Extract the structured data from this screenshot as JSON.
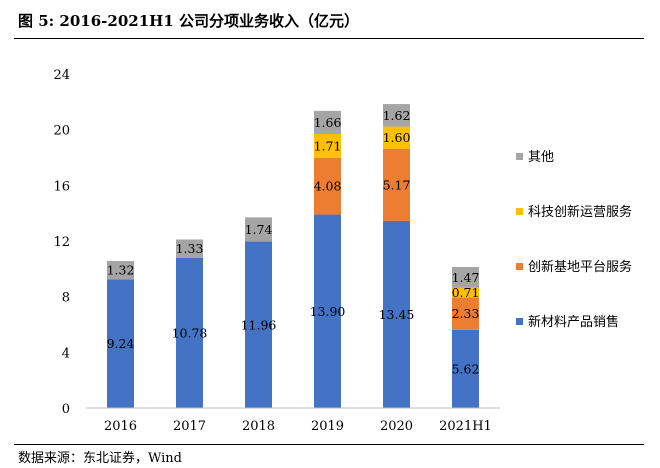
{
  "title": "图 5: 2016-2021H1 公司分项业务收入（亿元）",
  "source": "数据来源：东北证券，Wind",
  "chart_data": {
    "type": "bar",
    "stacked": true,
    "categories": [
      "2016",
      "2017",
      "2018",
      "2019",
      "2020",
      "2021H1"
    ],
    "ylim": [
      0,
      24
    ],
    "yticks": [
      0,
      4,
      8,
      12,
      16,
      20,
      24
    ],
    "grid": false,
    "legend_position": "right",
    "series": [
      {
        "name": "新材料产品销售",
        "color": "#4472C4",
        "values": [
          9.24,
          10.78,
          11.96,
          13.9,
          13.45,
          5.62
        ],
        "labels": [
          "9.24",
          "10.78",
          "11.96",
          "13.90",
          "13.45",
          "5.62"
        ]
      },
      {
        "name": "创新基地平台服务",
        "color": "#ED7D31",
        "values": [
          null,
          null,
          null,
          4.08,
          5.17,
          2.33
        ],
        "labels": [
          "",
          "",
          "",
          "4.08",
          "5.17",
          "2.33"
        ]
      },
      {
        "name": "科技创新运营服务",
        "color": "#FFC000",
        "values": [
          null,
          null,
          null,
          1.71,
          1.6,
          0.71
        ],
        "labels": [
          "",
          "",
          "",
          "1.71",
          "1.60",
          "0.71"
        ]
      },
      {
        "name": "其他",
        "color": "#A5A5A5",
        "values": [
          1.32,
          1.33,
          1.74,
          1.66,
          1.62,
          1.47
        ],
        "labels": [
          "1.32",
          "1.33",
          "1.74",
          "1.66",
          "1.62",
          "1.47"
        ]
      }
    ],
    "legend_order": [
      "其他",
      "科技创新运营服务",
      "创新基地平台服务",
      "新材料产品销售"
    ]
  }
}
